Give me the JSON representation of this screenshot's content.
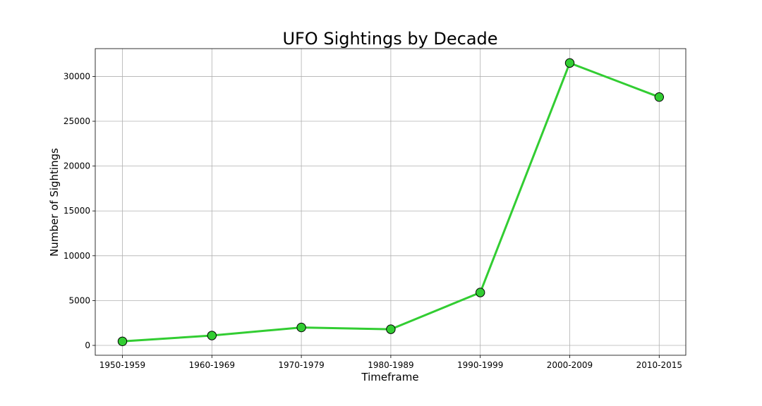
{
  "chart_data": {
    "type": "line",
    "title": "UFO Sightings by Decade",
    "xlabel": "Timeframe",
    "ylabel": "Number of Sightings",
    "categories": [
      "1950-1959",
      "1960-1969",
      "1970-1979",
      "1980-1989",
      "1990-1999",
      "2000-2009",
      "2010-2015"
    ],
    "series": [
      {
        "values": [
          450,
          1100,
          2000,
          1800,
          5900,
          31500,
          27700
        ],
        "color": "#32cd32",
        "marker": "circle",
        "marker_edge_color": "#000000"
      }
    ],
    "yticks": [
      0,
      5000,
      10000,
      15000,
      20000,
      25000,
      30000
    ],
    "ylim": [
      -1100,
      33100
    ],
    "grid": true,
    "legend": "none"
  }
}
